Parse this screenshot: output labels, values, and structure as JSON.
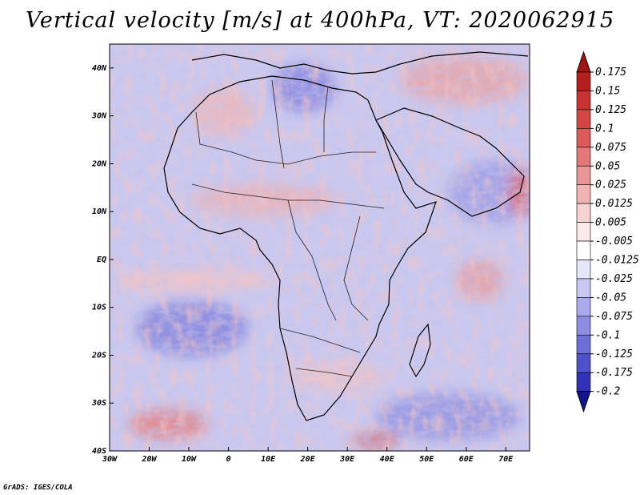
{
  "title": "Vertical velocity [m/s] at 400hPa, VT: 2020062915",
  "credit": "GrADS: IGES/COLA",
  "map": {
    "lon_range": [
      -30,
      76
    ],
    "lat_range": [
      -40,
      45
    ],
    "lat_ticks": [
      {
        "value": 40,
        "label": "40N"
      },
      {
        "value": 30,
        "label": "30N"
      },
      {
        "value": 20,
        "label": "20N"
      },
      {
        "value": 10,
        "label": "10N"
      },
      {
        "value": 0,
        "label": "EQ"
      },
      {
        "value": -10,
        "label": "10S"
      },
      {
        "value": -20,
        "label": "20S"
      },
      {
        "value": -30,
        "label": "30S"
      },
      {
        "value": -40,
        "label": "40S"
      }
    ],
    "lon_ticks": [
      {
        "value": -30,
        "label": "30W"
      },
      {
        "value": -20,
        "label": "20W"
      },
      {
        "value": -10,
        "label": "10W"
      },
      {
        "value": 0,
        "label": "0"
      },
      {
        "value": 10,
        "label": "10E"
      },
      {
        "value": 20,
        "label": "20E"
      },
      {
        "value": 30,
        "label": "30E"
      },
      {
        "value": 40,
        "label": "40E"
      },
      {
        "value": 50,
        "label": "50E"
      },
      {
        "value": 60,
        "label": "60E"
      },
      {
        "value": 70,
        "label": "70E"
      }
    ]
  },
  "colorbar": {
    "levels": [
      {
        "label": "0.175",
        "color": "#b41e1e"
      },
      {
        "label": "0.15",
        "color": "#c83232"
      },
      {
        "label": "0.125",
        "color": "#d44646"
      },
      {
        "label": "0.1",
        "color": "#dc5a5a"
      },
      {
        "label": "0.075",
        "color": "#e47878"
      },
      {
        "label": "0.05",
        "color": "#ea9696"
      },
      {
        "label": "0.025",
        "color": "#f0b4b4"
      },
      {
        "label": "0.0125",
        "color": "#f6d2d2"
      },
      {
        "label": "0.005",
        "color": "#fbeaea"
      },
      {
        "label": "-0.005",
        "color": "#ffffff"
      },
      {
        "label": "-0.0125",
        "color": "#e6e6fa"
      },
      {
        "label": "-0.025",
        "color": "#c8c8f2"
      },
      {
        "label": "-0.05",
        "color": "#aaaaec"
      },
      {
        "label": "-0.075",
        "color": "#8c8ce2"
      },
      {
        "label": "-0.1",
        "color": "#6e6ed8"
      },
      {
        "label": "-0.125",
        "color": "#5050ca"
      },
      {
        "label": "-0.175",
        "color": "#3232b8"
      },
      {
        "label": "-0.2",
        "color": "#1e1ea6"
      }
    ],
    "top_color": "#a01414",
    "bottom_color": "#14148c"
  }
}
